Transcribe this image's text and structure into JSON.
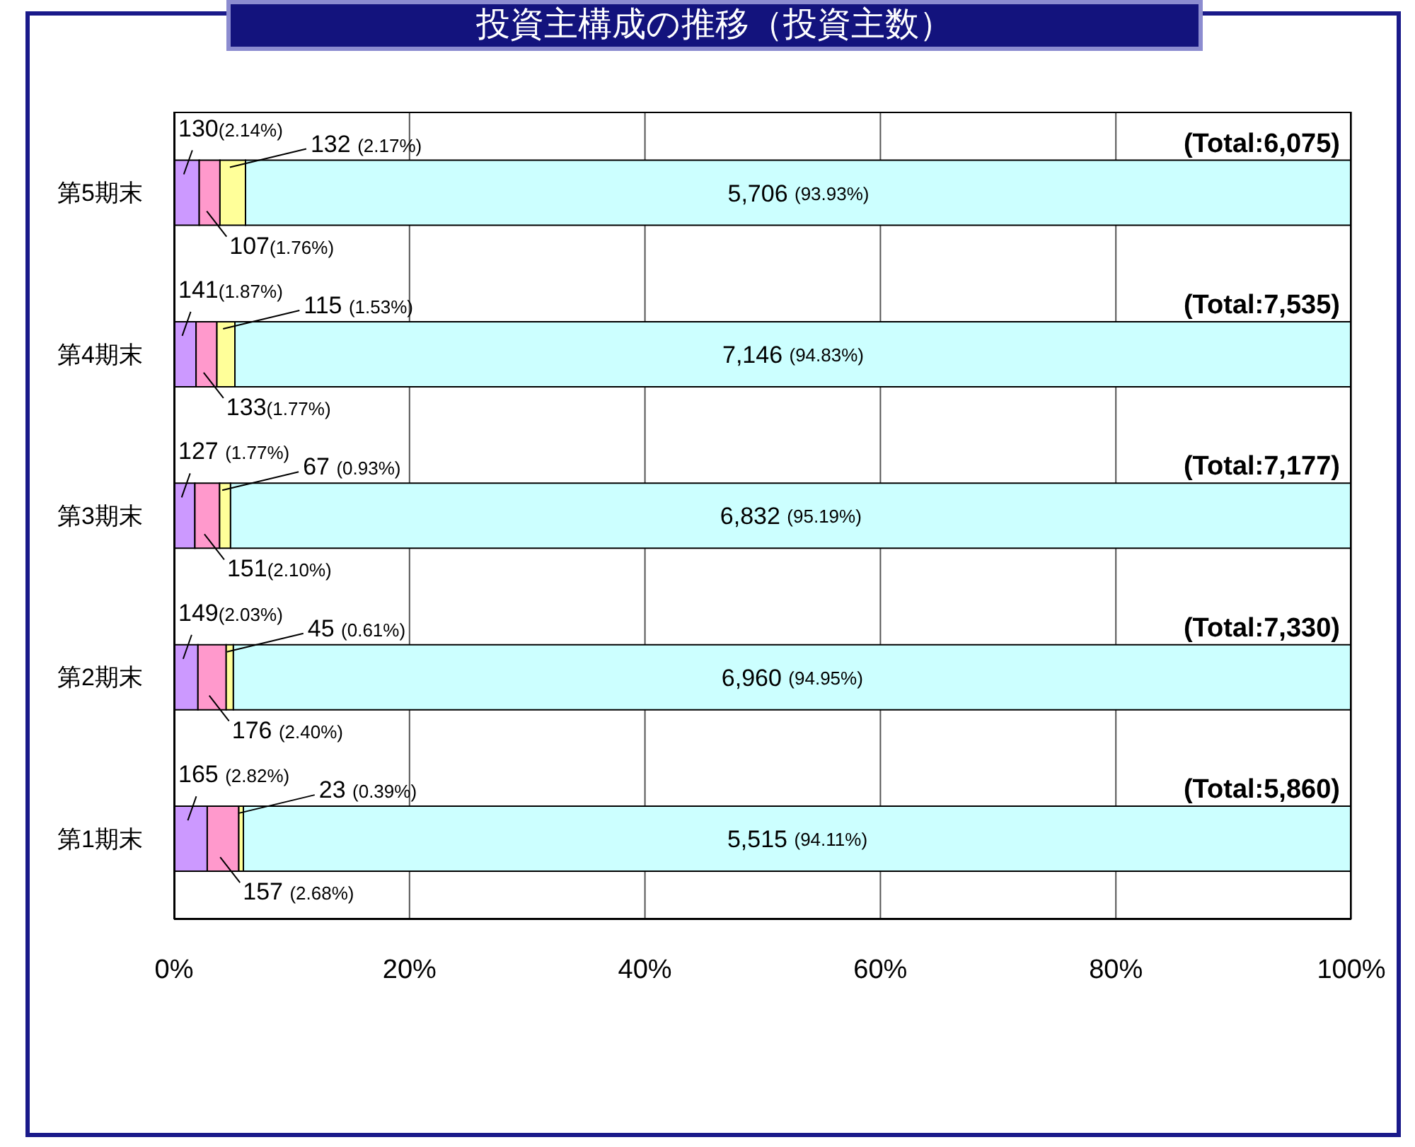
{
  "chart_data": {
    "type": "bar",
    "orientation": "horizontal",
    "stacked": true,
    "title": "投資主構成の推移（投資主数）",
    "categories": [
      "第5期末",
      "第4期末",
      "第3期末",
      "第2期末",
      "第1期末"
    ],
    "series": [
      {
        "color": "#cc99ff",
        "values": [
          2.14,
          1.87,
          1.77,
          2.03,
          2.82
        ],
        "value_labels": [
          "130(2.14%)",
          "141(1.87%)",
          "127 (1.77%)",
          "149(2.03%)",
          "165 (2.82%)"
        ]
      },
      {
        "color": "#ff99cc",
        "values": [
          1.76,
          1.77,
          2.1,
          2.4,
          2.68
        ],
        "value_labels": [
          "107(1.76%)",
          "133(1.77%)",
          "151(2.10%)",
          "176 (2.40%)",
          "157 (2.68%)"
        ]
      },
      {
        "color": "#ffff99",
        "values": [
          2.17,
          1.53,
          0.93,
          0.61,
          0.39
        ],
        "value_labels": [
          "132 (2.17%)",
          "115 (1.53%)",
          "67 (0.93%)",
          "45 (0.61%)",
          "23 (0.39%)"
        ]
      },
      {
        "color": "#ccffff",
        "values": [
          93.93,
          94.83,
          95.19,
          94.95,
          94.11
        ],
        "value_labels": [
          "5,706 (93.93%)",
          "7,146 (94.83%)",
          "6,832 (95.19%)",
          "6,960 (94.95%)",
          "5,515 (94.11%)"
        ]
      }
    ],
    "annotations": [
      "(Total:6,075)",
      "(Total:7,535)",
      "(Total:7,177)",
      "(Total:7,330)",
      "(Total:5,860)"
    ],
    "xlim": [
      0,
      100
    ],
    "xticks": [
      {
        "value": 0,
        "label": "0%"
      },
      {
        "value": 20,
        "label": "20%"
      },
      {
        "value": 40,
        "label": "40%"
      },
      {
        "value": 60,
        "label": "60%"
      },
      {
        "value": 80,
        "label": "80%"
      },
      {
        "value": 100,
        "label": "100%"
      }
    ],
    "grid": "x"
  }
}
